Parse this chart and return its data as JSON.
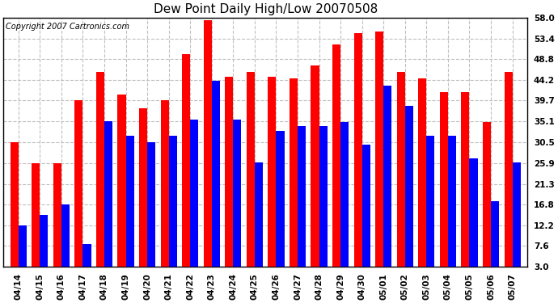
{
  "title": "Dew Point Daily High/Low 20070508",
  "copyright": "Copyright 2007 Cartronics.com",
  "dates": [
    "04/14",
    "04/15",
    "04/16",
    "04/17",
    "04/18",
    "04/19",
    "04/20",
    "04/21",
    "04/22",
    "04/23",
    "04/24",
    "04/25",
    "04/26",
    "04/27",
    "04/28",
    "04/29",
    "04/30",
    "05/01",
    "05/02",
    "05/03",
    "05/04",
    "05/05",
    "05/06",
    "05/07"
  ],
  "highs": [
    30.5,
    25.9,
    25.9,
    39.7,
    46.0,
    41.0,
    38.0,
    39.7,
    50.0,
    57.5,
    45.0,
    46.0,
    45.0,
    44.5,
    47.5,
    52.0,
    54.5,
    55.0,
    46.0,
    44.5,
    41.5,
    41.5,
    35.0,
    46.0
  ],
  "lows": [
    12.2,
    14.5,
    16.8,
    8.0,
    35.1,
    32.0,
    30.5,
    32.0,
    35.5,
    44.0,
    35.5,
    26.0,
    33.0,
    34.0,
    34.0,
    35.0,
    30.0,
    43.0,
    38.5,
    32.0,
    32.0,
    27.0,
    17.5,
    26.0
  ],
  "high_color": "#ff0000",
  "low_color": "#0000ff",
  "bg_color": "#ffffff",
  "plot_bg_color": "#ffffff",
  "grid_color": "#c0c0c0",
  "yticks": [
    3.0,
    7.6,
    12.2,
    16.8,
    21.3,
    25.9,
    30.5,
    35.1,
    39.7,
    44.2,
    48.8,
    53.4,
    58.0
  ],
  "ymin": 3.0,
  "ymax": 58.0,
  "title_fontsize": 11,
  "copyright_fontsize": 7,
  "tick_fontsize": 7.5
}
